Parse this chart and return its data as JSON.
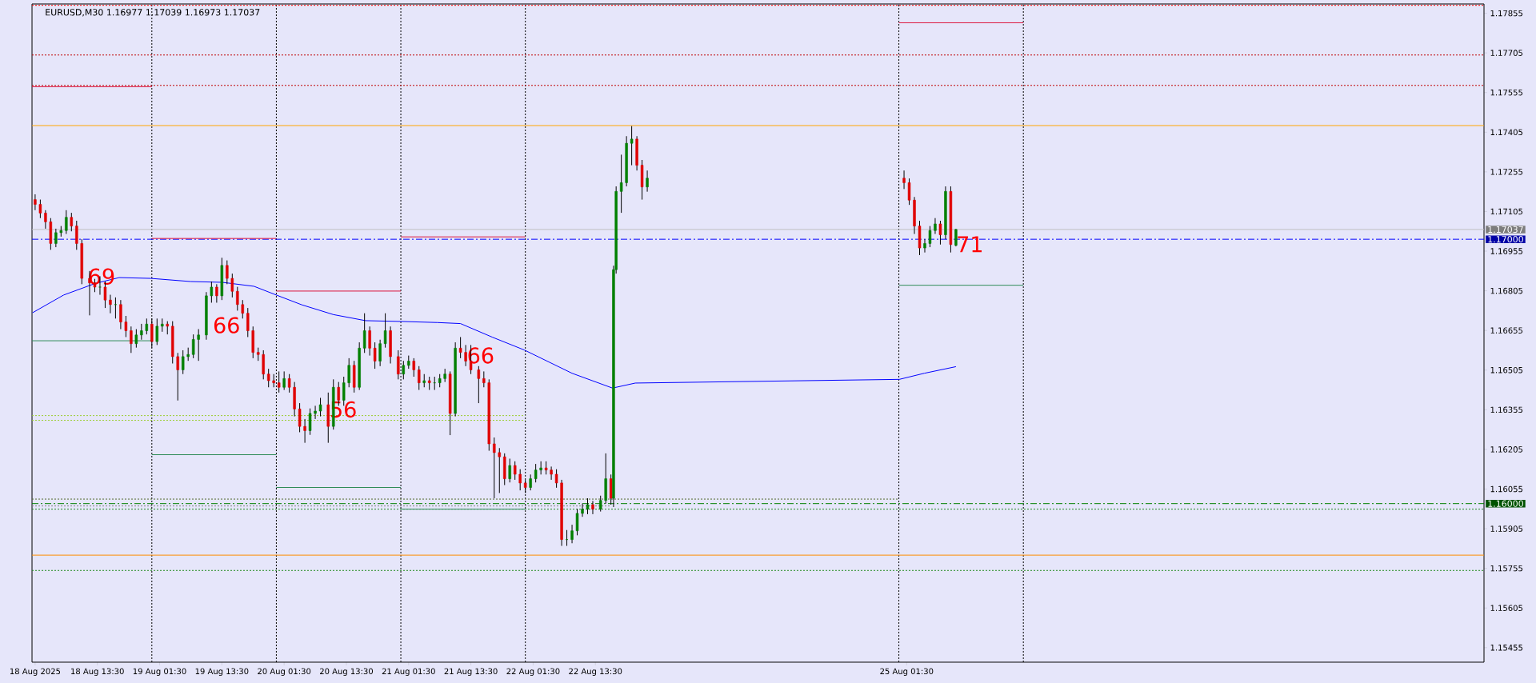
{
  "chart_data": {
    "type": "candlestick",
    "title": "EURUSD,M30  1.16977 1.17039 1.16973 1.17037",
    "x": [
      "2025-08-18T01:30",
      "2025-08-18T02:30",
      "2025-08-18T03:30",
      "2025-08-18T04:30",
      "2025-08-18T05:30",
      "2025-08-18T06:30",
      "2025-08-18T07:30",
      "2025-08-18T08:30",
      "2025-08-18T09:30",
      "2025-08-18T10:30",
      "2025-08-18T12:00",
      "2025-08-18T13:00",
      "2025-08-18T14:00",
      "2025-08-18T15:00",
      "2025-08-18T16:00",
      "2025-08-18T17:00",
      "2025-08-18T18:00",
      "2025-08-18T19:00",
      "2025-08-18T20:00",
      "2025-08-18T21:00",
      "2025-08-18T22:00",
      "2025-08-18T23:00",
      "2025-08-19T00:00",
      "2025-08-19T01:00",
      "2025-08-19T02:00",
      "2025-08-19T03:00",
      "2025-08-19T04:00",
      "2025-08-19T05:00",
      "2025-08-19T06:00",
      "2025-08-19T07:00",
      "2025-08-19T08:00",
      "2025-08-19T09:00",
      "2025-08-19T10:30",
      "2025-08-19T11:30",
      "2025-08-19T12:30",
      "2025-08-19T13:30",
      "2025-08-19T14:30",
      "2025-08-19T15:30",
      "2025-08-19T16:30",
      "2025-08-19T17:30",
      "2025-08-19T18:30",
      "2025-08-19T19:30",
      "2025-08-19T20:30",
      "2025-08-19T21:30",
      "2025-08-19T22:30",
      "2025-08-19T23:30",
      "2025-08-20T00:30",
      "2025-08-20T01:30",
      "2025-08-20T02:30",
      "2025-08-20T03:30",
      "2025-08-20T04:30",
      "2025-08-20T05:30",
      "2025-08-20T06:30",
      "2025-08-20T07:30",
      "2025-08-20T08:30",
      "2025-08-20T10:00",
      "2025-08-20T11:00",
      "2025-08-20T12:00",
      "2025-08-20T13:00",
      "2025-08-20T14:00",
      "2025-08-20T15:00",
      "2025-08-20T16:00",
      "2025-08-20T17:00",
      "2025-08-20T18:00",
      "2025-08-20T19:00",
      "2025-08-20T20:00",
      "2025-08-20T21:00",
      "2025-08-20T22:00",
      "2025-08-20T23:30",
      "2025-08-21T00:30",
      "2025-08-21T01:30",
      "2025-08-21T02:30",
      "2025-08-21T03:30",
      "2025-08-21T04:30",
      "2025-08-21T05:30",
      "2025-08-21T06:30",
      "2025-08-21T07:30",
      "2025-08-21T08:30",
      "2025-08-21T09:30",
      "2025-08-21T10:30",
      "2025-08-21T11:30",
      "2025-08-21T12:30",
      "2025-08-21T13:30",
      "2025-08-21T15:00",
      "2025-08-21T16:00",
      "2025-08-21T17:00",
      "2025-08-21T18:00",
      "2025-08-21T19:00",
      "2025-08-21T20:00",
      "2025-08-21T21:00",
      "2025-08-21T22:00",
      "2025-08-21T23:00",
      "2025-08-22T00:00",
      "2025-08-22T01:00",
      "2025-08-22T02:00",
      "2025-08-22T03:00",
      "2025-08-22T04:00",
      "2025-08-22T05:00",
      "2025-08-22T06:00",
      "2025-08-22T07:00",
      "2025-08-22T08:00",
      "2025-08-22T09:00",
      "2025-08-22T10:00",
      "2025-08-22T11:00",
      "2025-08-22T12:00",
      "2025-08-22T13:00",
      "2025-08-22T14:30",
      "2025-08-22T15:30",
      "2025-08-22T16:30",
      "2025-08-22T17:00",
      "2025-08-22T17:30",
      "2025-08-22T18:30",
      "2025-08-22T19:30",
      "2025-08-22T20:30",
      "2025-08-22T21:30",
      "2025-08-22T22:30",
      "2025-08-22T23:30",
      "2025-08-25T01:00",
      "2025-08-25T02:00",
      "2025-08-25T03:00",
      "2025-08-25T04:00",
      "2025-08-25T05:00",
      "2025-08-25T06:00",
      "2025-08-25T07:00",
      "2025-08-25T08:00",
      "2025-08-25T09:00",
      "2025-08-25T10:00",
      "2025-08-25T11:00"
    ],
    "ohlc": [
      [
        1.1715,
        1.1717,
        1.1711,
        1.17132
      ],
      [
        1.17132,
        1.1715,
        1.1708,
        1.17099
      ],
      [
        1.17099,
        1.1711,
        1.1704,
        1.17066
      ],
      [
        1.17066,
        1.1708,
        1.1696,
        1.16984
      ],
      [
        1.16984,
        1.1704,
        1.1697,
        1.17025
      ],
      [
        1.17025,
        1.1705,
        1.1701,
        1.17033
      ],
      [
        1.17033,
        1.1711,
        1.1702,
        1.17083
      ],
      [
        1.17083,
        1.171,
        1.1703,
        1.1705
      ],
      [
        1.1705,
        1.1707,
        1.1696,
        1.16984
      ],
      [
        1.16984,
        1.17,
        1.1683,
        1.16852
      ],
      [
        1.16852,
        1.1688,
        1.16712,
        1.16835
      ],
      [
        1.16835,
        1.1685,
        1.168,
        1.16819
      ],
      [
        1.16819,
        1.1686,
        1.1679,
        1.16819
      ],
      [
        1.16819,
        1.1684,
        1.1674,
        1.1677
      ],
      [
        1.1677,
        1.1679,
        1.1672,
        1.16753
      ],
      [
        1.16753,
        1.1678,
        1.167,
        1.16753
      ],
      [
        1.16753,
        1.1677,
        1.1666,
        1.16687
      ],
      [
        1.16687,
        1.1671,
        1.1663,
        1.16654
      ],
      [
        1.16654,
        1.1667,
        1.1657,
        1.16605
      ],
      [
        1.16605,
        1.1666,
        1.1659,
        1.16638
      ],
      [
        1.16638,
        1.1668,
        1.1662,
        1.16654
      ],
      [
        1.16654,
        1.167,
        1.1664,
        1.16679
      ],
      [
        1.16679,
        1.167,
        1.1659,
        1.16613
      ],
      [
        1.16613,
        1.167,
        1.166,
        1.16671
      ],
      [
        1.16671,
        1.167,
        1.1665,
        1.16679
      ],
      [
        1.16679,
        1.1669,
        1.1664,
        1.16671
      ],
      [
        1.16671,
        1.1669,
        1.1653,
        1.16556
      ],
      [
        1.16556,
        1.1657,
        1.1639,
        1.16506
      ],
      [
        1.16506,
        1.1658,
        1.1649,
        1.16556
      ],
      [
        1.16556,
        1.1659,
        1.1654,
        1.16564
      ],
      [
        1.16564,
        1.1664,
        1.1655,
        1.16621
      ],
      [
        1.16621,
        1.1666,
        1.1654,
        1.16638
      ],
      [
        1.16638,
        1.168,
        1.1662,
        1.16786
      ],
      [
        1.16786,
        1.1684,
        1.1676,
        1.16819
      ],
      [
        1.16819,
        1.1683,
        1.1676,
        1.16786
      ],
      [
        1.16786,
        1.1693,
        1.1677,
        1.16901
      ],
      [
        1.16901,
        1.1692,
        1.1683,
        1.16852
      ],
      [
        1.16852,
        1.1687,
        1.1678,
        1.16803
      ],
      [
        1.16803,
        1.1682,
        1.1673,
        1.16753
      ],
      [
        1.16753,
        1.1677,
        1.167,
        1.1672
      ],
      [
        1.1672,
        1.1674,
        1.1663,
        1.16654
      ],
      [
        1.16654,
        1.1667,
        1.1655,
        1.16572
      ],
      [
        1.16572,
        1.1659,
        1.1654,
        1.16564
      ],
      [
        1.16564,
        1.1658,
        1.1647,
        1.1649
      ],
      [
        1.1649,
        1.1651,
        1.1644,
        1.16465
      ],
      [
        1.16465,
        1.1649,
        1.1644,
        1.16457
      ],
      [
        1.16457,
        1.165,
        1.1642,
        1.1644
      ],
      [
        1.1644,
        1.165,
        1.1643,
        1.16473
      ],
      [
        1.16473,
        1.1649,
        1.1642,
        1.1644
      ],
      [
        1.1644,
        1.1646,
        1.1633,
        1.16358
      ],
      [
        1.16358,
        1.1638,
        1.1627,
        1.16292
      ],
      [
        1.16292,
        1.1632,
        1.1623,
        1.16276
      ],
      [
        1.16276,
        1.1636,
        1.1626,
        1.16341
      ],
      [
        1.16341,
        1.1637,
        1.1632,
        1.1635
      ],
      [
        1.1635,
        1.164,
        1.1633,
        1.16374
      ],
      [
        1.16374,
        1.1642,
        1.1623,
        1.16292
      ],
      [
        1.16292,
        1.1647,
        1.1628,
        1.1644
      ],
      [
        1.1644,
        1.1646,
        1.1637,
        1.16391
      ],
      [
        1.16391,
        1.1648,
        1.1637,
        1.16457
      ],
      [
        1.16457,
        1.1655,
        1.1644,
        1.16523
      ],
      [
        1.16523,
        1.1654,
        1.1642,
        1.1644
      ],
      [
        1.1644,
        1.1661,
        1.1643,
        1.16588
      ],
      [
        1.16588,
        1.1672,
        1.1657,
        1.16654
      ],
      [
        1.16654,
        1.1667,
        1.1656,
        1.16588
      ],
      [
        1.16588,
        1.1661,
        1.1651,
        1.16539
      ],
      [
        1.16539,
        1.1662,
        1.1652,
        1.16605
      ],
      [
        1.16605,
        1.1672,
        1.1659,
        1.16654
      ],
      [
        1.16654,
        1.1667,
        1.1653,
        1.16556
      ],
      [
        1.16556,
        1.1658,
        1.1647,
        1.1649
      ],
      [
        1.1649,
        1.1654,
        1.1647,
        1.16523
      ],
      [
        1.16523,
        1.1656,
        1.1651,
        1.16539
      ],
      [
        1.16539,
        1.1655,
        1.1648,
        1.16506
      ],
      [
        1.16506,
        1.1652,
        1.1643,
        1.16457
      ],
      [
        1.16457,
        1.1649,
        1.1644,
        1.16465
      ],
      [
        1.16465,
        1.1648,
        1.1643,
        1.16457
      ],
      [
        1.16457,
        1.1648,
        1.1643,
        1.16457
      ],
      [
        1.16457,
        1.1649,
        1.1644,
        1.16473
      ],
      [
        1.16473,
        1.1651,
        1.1646,
        1.1649
      ],
      [
        1.1649,
        1.165,
        1.16259,
        1.16341
      ],
      [
        1.16341,
        1.1661,
        1.1633,
        1.16588
      ],
      [
        1.16588,
        1.1663,
        1.1655,
        1.16572
      ],
      [
        1.16572,
        1.166,
        1.1652,
        1.16539
      ],
      [
        1.16539,
        1.166,
        1.1649,
        1.16506
      ],
      [
        1.16506,
        1.1652,
        1.1638,
        1.16473
      ],
      [
        1.16473,
        1.165,
        1.1644,
        1.16457
      ],
      [
        1.16457,
        1.1647,
        1.162,
        1.16226
      ],
      [
        1.16226,
        1.1625,
        1.1602,
        1.16193
      ],
      [
        1.16193,
        1.1621,
        1.1604,
        1.16177
      ],
      [
        1.16177,
        1.1619,
        1.1607,
        1.16094
      ],
      [
        1.16094,
        1.1617,
        1.1608,
        1.16144
      ],
      [
        1.16144,
        1.1616,
        1.1609,
        1.16111
      ],
      [
        1.16111,
        1.1613,
        1.1605,
        1.16078
      ],
      [
        1.16078,
        1.1609,
        1.1604,
        1.16061
      ],
      [
        1.16061,
        1.1611,
        1.1605,
        1.16094
      ],
      [
        1.16094,
        1.1615,
        1.1608,
        1.16127
      ],
      [
        1.16127,
        1.1616,
        1.1611,
        1.16135
      ],
      [
        1.16135,
        1.1616,
        1.1611,
        1.16127
      ],
      [
        1.16127,
        1.1614,
        1.1609,
        1.16111
      ],
      [
        1.16111,
        1.1613,
        1.1606,
        1.16078
      ],
      [
        1.16078,
        1.1609,
        1.1584,
        1.15864
      ],
      [
        1.15864,
        1.159,
        1.1584,
        1.15864
      ],
      [
        1.15864,
        1.1592,
        1.1585,
        1.15897
      ],
      [
        1.15897,
        1.1598,
        1.1588,
        1.15963
      ],
      [
        1.15963,
        1.16,
        1.1595,
        1.15979
      ],
      [
        1.15979,
        1.1602,
        1.1596,
        1.15996
      ],
      [
        1.15996,
        1.1601,
        1.1596,
        1.15979
      ],
      [
        1.15979,
        1.1603,
        1.1597,
        1.16012
      ],
      [
        1.16012,
        1.1619,
        1.16,
        1.16094
      ],
      [
        1.16094,
        1.1611,
        1.15996,
        1.1602
      ],
      [
        1.1602,
        1.169,
        1.15987,
        1.16885
      ],
      [
        1.16885,
        1.172,
        1.1687,
        1.17181
      ],
      [
        1.17181,
        1.1732,
        1.171,
        1.17214
      ],
      [
        1.17214,
        1.1739,
        1.172,
        1.17363
      ],
      [
        1.17363,
        1.17428,
        1.1728,
        1.17379
      ],
      [
        1.17379,
        1.1739,
        1.1726,
        1.1728
      ],
      [
        1.1728,
        1.173,
        1.1715,
        1.17198
      ],
      [
        1.17198,
        1.1726,
        1.1718,
        1.17231
      ],
      [
        1.17231,
        1.1726,
        1.1719,
        1.17214
      ],
      [
        1.17214,
        1.1723,
        1.1713,
        1.17148
      ],
      [
        1.17148,
        1.1716,
        1.1702,
        1.1705
      ],
      [
        1.1705,
        1.1707,
        1.1694,
        1.16967
      ],
      [
        1.16967,
        1.17,
        1.1695,
        1.16984
      ],
      [
        1.16984,
        1.1705,
        1.1697,
        1.17033
      ],
      [
        1.17033,
        1.1708,
        1.1702,
        1.17058
      ],
      [
        1.17058,
        1.1707,
        1.1698,
        1.17017
      ],
      [
        1.17017,
        1.172,
        1.17,
        1.17181
      ],
      [
        1.17181,
        1.172,
        1.1695,
        1.1698
      ],
      [
        1.16977,
        1.17039,
        1.16973,
        1.17037
      ]
    ],
    "colors": [
      "#e00000",
      "#e00000",
      "#e00000",
      "#e00000",
      "#008000",
      "#008000",
      "#008000",
      "#e00000",
      "#e00000",
      "#e00000",
      "#e00000",
      "#e00000",
      "#008000",
      "#e00000",
      "#e00000",
      "#008000",
      "#e00000",
      "#e00000",
      "#e00000",
      "#008000",
      "#008000",
      "#008000",
      "#e00000",
      "#008000",
      "#008000",
      "#e00000",
      "#e00000",
      "#e00000",
      "#008000",
      "#008000",
      "#008000",
      "#008000",
      "#008000",
      "#008000",
      "#e00000",
      "#008000",
      "#e00000",
      "#e00000",
      "#e00000",
      "#e00000",
      "#e00000",
      "#e00000",
      "#e00000",
      "#e00000",
      "#e00000",
      "#e00000",
      "#e00000",
      "#008000",
      "#e00000",
      "#e00000",
      "#e00000",
      "#e00000",
      "#008000",
      "#008000",
      "#008000",
      "#e00000",
      "#008000",
      "#e00000",
      "#008000",
      "#008000",
      "#e00000",
      "#008000",
      "#008000",
      "#e00000",
      "#e00000",
      "#008000",
      "#008000",
      "#e00000",
      "#e00000",
      "#008000",
      "#008000",
      "#e00000",
      "#e00000",
      "#008000",
      "#e00000",
      "#008000",
      "#008000",
      "#008000",
      "#e00000",
      "#008000",
      "#e00000",
      "#e00000",
      "#e00000",
      "#e00000",
      "#e00000",
      "#e00000",
      "#e00000",
      "#e00000",
      "#e00000",
      "#008000",
      "#e00000",
      "#e00000",
      "#e00000",
      "#008000",
      "#008000",
      "#008000",
      "#e00000",
      "#e00000",
      "#e00000",
      "#e00000",
      "#008000",
      "#008000",
      "#008000",
      "#008000",
      "#008000",
      "#e00000",
      "#008000",
      "#008000",
      "#e00000",
      "#008000",
      "#008000",
      "#008000",
      "#008000",
      "#008000",
      "#e00000",
      "#e00000",
      "#008000",
      "#e00000",
      "#e00000",
      "#e00000",
      "#e00000",
      "#008000",
      "#008000",
      "#008000",
      "#e00000",
      "#008000",
      "#e00000",
      "#008000"
    ],
    "series": [
      {
        "type": "line",
        "color": "#0000ff",
        "x": [
          "2025-08-18T01:00",
          "2025-08-18T07:00",
          "2025-08-18T13:06",
          "2025-08-18T17:42",
          "2025-08-18T23:48",
          "2025-08-19T07:30",
          "2025-08-19T13:36",
          "2025-08-19T19:42",
          "2025-08-20T00:00",
          "2025-08-20T04:54",
          "2025-08-20T11:00",
          "2025-08-20T17:12",
          "2025-08-21T00:00",
          "2025-08-21T07:00",
          "2025-08-21T11:30",
          "2025-08-21T17:42",
          "2025-08-21T23:48",
          "2025-08-22T09:00",
          "2025-08-22T16:48",
          "2025-08-22T21:12",
          "2025-08-25T00:06",
          "2025-08-25T04:54",
          "2025-08-25T11:00"
        ],
        "values": [
          1.16722,
          1.16789,
          1.16833,
          1.16855,
          1.16852,
          1.1684,
          1.16837,
          1.16822,
          1.16789,
          1.16752,
          1.16715,
          1.16692,
          1.16689,
          1.16685,
          1.16681,
          1.16629,
          1.16581,
          1.16493,
          1.16437,
          1.16456,
          1.1647,
          1.16493,
          1.16518
        ]
      },
      {
        "type": "line",
        "color": "#dc143c",
        "line_style": "solid",
        "x": [
          "2025-08-18T00:54",
          "2025-08-19T00:00"
        ],
        "values": [
          1.17577,
          1.17577
        ]
      },
      {
        "type": "line",
        "color": "#dc143c",
        "line_style": "solid",
        "x": [
          "2025-08-19T00:00",
          "2025-08-20T00:00"
        ],
        "values": [
          1.17003,
          1.17003
        ]
      },
      {
        "type": "line",
        "color": "#dc143c",
        "line_style": "solid",
        "x": [
          "2025-08-20T00:00",
          "2025-08-21T00:00"
        ],
        "values": [
          1.16804,
          1.16804
        ]
      },
      {
        "type": "line",
        "color": "#dc143c",
        "line_style": "solid",
        "x": [
          "2025-08-21T00:00",
          "2025-08-22T00:00"
        ],
        "values": [
          1.17009,
          1.17009
        ]
      },
      {
        "type": "line",
        "color": "#dc143c",
        "line_style": "solid",
        "x": [
          "2025-08-25T00:00",
          "2025-08-26T00:00"
        ],
        "values": [
          1.17819,
          1.17819
        ]
      },
      {
        "type": "line",
        "color": "#2e8b57",
        "line_style": "solid",
        "x": [
          "2025-08-18T00:54",
          "2025-08-19T00:00"
        ],
        "values": [
          1.16616,
          1.16616
        ]
      },
      {
        "type": "line",
        "color": "#2e8b57",
        "line_style": "solid",
        "x": [
          "2025-08-19T00:00",
          "2025-08-20T00:00"
        ],
        "values": [
          1.16185,
          1.16185
        ]
      },
      {
        "type": "line",
        "color": "#2e8b57",
        "line_style": "solid",
        "x": [
          "2025-08-20T00:00",
          "2025-08-21T00:00"
        ],
        "values": [
          1.16061,
          1.16061
        ]
      },
      {
        "type": "line",
        "color": "#2e8b57",
        "line_style": "solid",
        "x": [
          "2025-08-21T00:00",
          "2025-08-22T00:00"
        ],
        "values": [
          1.15979,
          1.15979
        ]
      },
      {
        "type": "line",
        "color": "#2e8b57",
        "line_style": "solid",
        "x": [
          "2025-08-25T00:00",
          "2025-08-26T00:00"
        ],
        "values": [
          1.16826,
          1.16826
        ]
      },
      {
        "type": "line",
        "color": "#9acd32",
        "line_style": "dotted",
        "x": [
          "2025-08-18T00:54",
          "2025-08-22T00:00"
        ],
        "values": [
          1.16333,
          1.16333
        ]
      },
      {
        "type": "line",
        "color": "#9acd32",
        "line_style": "dotted",
        "x": [
          "2025-08-18T00:54",
          "2025-08-22T00:00"
        ],
        "values": [
          1.16315,
          1.16315
        ]
      },
      {
        "type": "line",
        "color": "#556b2f",
        "line_style": "dotted",
        "x": [
          "2025-08-18T00:54",
          "2025-08-25T00:00"
        ],
        "values": [
          1.16017,
          1.16017
        ]
      },
      {
        "type": "line",
        "color": "#808080",
        "line_style": "dotted",
        "x": [
          "2025-08-18T00:54",
          "2025-08-22T16:30"
        ],
        "values": [
          1.15991,
          1.15991
        ]
      }
    ],
    "ref_lines": [
      {
        "axis": "x",
        "value": "2025-08-19T00:00",
        "color": "#000000",
        "line_style": "dotted"
      },
      {
        "axis": "x",
        "value": "2025-08-20T00:00",
        "color": "#000000",
        "line_style": "dotted"
      },
      {
        "axis": "x",
        "value": "2025-08-21T00:00",
        "color": "#000000",
        "line_style": "dotted"
      },
      {
        "axis": "x",
        "value": "2025-08-22T00:00",
        "color": "#000000",
        "line_style": "dotted"
      },
      {
        "axis": "x",
        "value": "2025-08-25T00:00",
        "color": "#000000",
        "line_style": "dotted"
      },
      {
        "axis": "x",
        "value": "2025-08-26T00:00",
        "color": "#000000",
        "line_style": "dotted"
      },
      {
        "axis": "y",
        "value": 1.17885,
        "color": "#ff0000",
        "line_style": "dotted"
      },
      {
        "axis": "y",
        "value": 1.17697,
        "color": "#c00000",
        "line_style": "dotted"
      },
      {
        "axis": "y",
        "value": 1.17582,
        "color": "#c00000",
        "line_style": "dotted"
      },
      {
        "axis": "y",
        "value": 1.1743,
        "color": "#ffa500",
        "line_style": "solid"
      },
      {
        "axis": "y",
        "value": 1.17037,
        "color": "#c0c0c0",
        "line_style": "solid",
        "label": "1.17037"
      },
      {
        "axis": "y",
        "value": 1.17,
        "color": "#0000ff",
        "line_style": "dashed",
        "label": "1.17000"
      },
      {
        "axis": "y",
        "value": 1.16,
        "color": "#008000",
        "line_style": "dashed",
        "label": "1.16000"
      },
      {
        "axis": "y",
        "value": 1.15979,
        "color": "#228b22",
        "line_style": "dotted"
      },
      {
        "axis": "y",
        "value": 1.15805,
        "color": "#ff8c00",
        "line_style": "solid"
      },
      {
        "axis": "y",
        "value": 1.15747,
        "color": "#228b22",
        "line_style": "dotted"
      }
    ],
    "annotations": [
      "69",
      "66",
      "56",
      "66",
      "71"
    ],
    "xlim": [
      "2025-08-18T00:54",
      "2025-08-29T16:48"
    ],
    "ylim": [
      1.154,
      1.1789
    ],
    "xticks": [
      {
        "value": "2025-08-18T01:30",
        "label": "18 Aug 2025"
      },
      {
        "value": "2025-08-18T13:30",
        "label": "18 Aug 13:30"
      },
      {
        "value": "2025-08-19T01:30",
        "label": "19 Aug 01:30"
      },
      {
        "value": "2025-08-19T13:30",
        "label": "19 Aug 13:30"
      },
      {
        "value": "2025-08-20T01:30",
        "label": "20 Aug 01:30"
      },
      {
        "value": "2025-08-20T13:30",
        "label": "20 Aug 13:30"
      },
      {
        "value": "2025-08-21T01:30",
        "label": "21 Aug 01:30"
      },
      {
        "value": "2025-08-21T13:30",
        "label": "21 Aug 13:30"
      },
      {
        "value": "2025-08-22T01:30",
        "label": "22 Aug 01:30"
      },
      {
        "value": "2025-08-22T13:30",
        "label": "22 Aug 13:30"
      },
      {
        "value": "2025-08-25T01:30",
        "label": "25 Aug 01:30"
      }
    ],
    "yticks": [
      1.15455,
      1.15605,
      1.15755,
      1.15905,
      1.16055,
      1.16205,
      1.16355,
      1.16505,
      1.16655,
      1.16805,
      1.16955,
      1.17105,
      1.17255,
      1.17405,
      1.17555,
      1.17705,
      1.17855
    ]
  }
}
